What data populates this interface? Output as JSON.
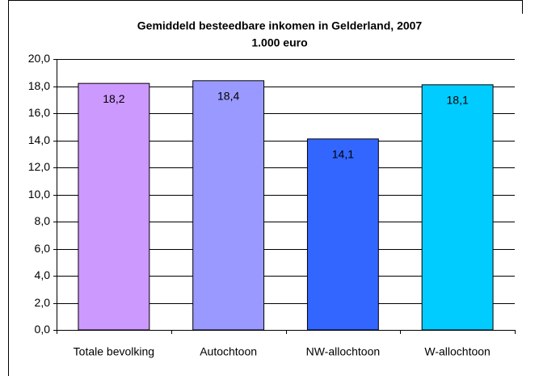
{
  "chart_data": {
    "type": "bar",
    "title": "Gemiddeld besteedbare inkomen in Gelderland, 2007",
    "subtitle": "1.000 euro",
    "categories": [
      "Totale bevolking",
      "Autochtoon",
      "NW-allochtoon",
      "W-allochtoon"
    ],
    "values": [
      18.2,
      18.4,
      14.1,
      18.1
    ],
    "value_labels": [
      "18,2",
      "18,4",
      "14,1",
      "18,1"
    ],
    "colors": [
      "#cc99ff",
      "#9999ff",
      "#3366ff",
      "#00ccff"
    ],
    "ylim": [
      0,
      20
    ],
    "yticks": [
      {
        "value": 0,
        "label": "0,0"
      },
      {
        "value": 2,
        "label": "2,0"
      },
      {
        "value": 4,
        "label": "4,0"
      },
      {
        "value": 6,
        "label": "6,0"
      },
      {
        "value": 8,
        "label": "8,0"
      },
      {
        "value": 10,
        "label": "10,0"
      },
      {
        "value": 12,
        "label": "12,0"
      },
      {
        "value": 14,
        "label": "14,0"
      },
      {
        "value": 16,
        "label": "16,0"
      },
      {
        "value": 18,
        "label": "18,0"
      },
      {
        "value": 20,
        "label": "20,0"
      }
    ],
    "grid": true
  }
}
